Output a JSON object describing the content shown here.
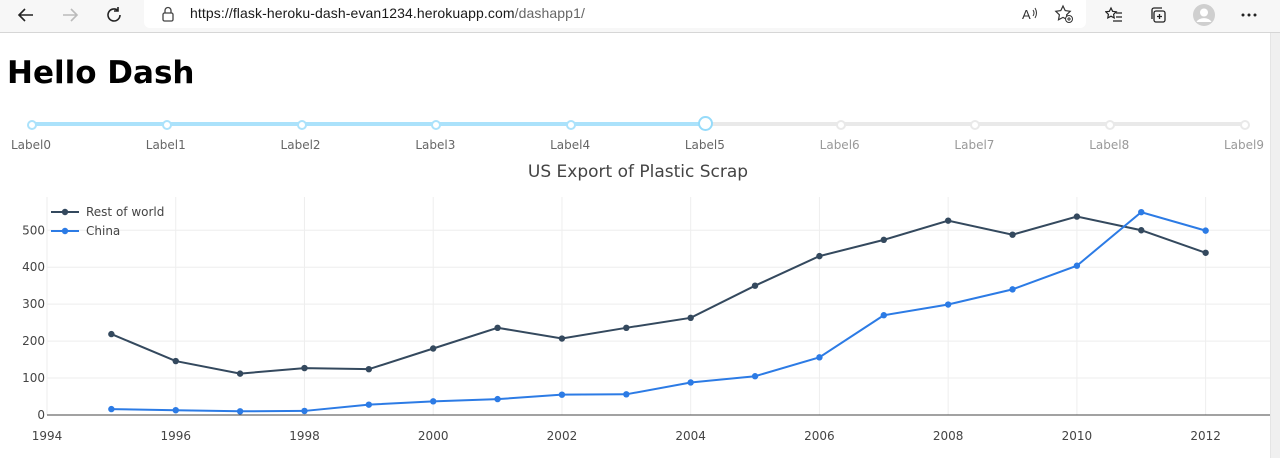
{
  "browser": {
    "url_host": "https://flask-heroku-dash-evan1234.herokuapp.com",
    "url_path": "/dashapp1/",
    "icons": [
      "back-icon",
      "forward-icon",
      "refresh-icon",
      "lock-icon",
      "read-aloud-icon",
      "favorite-add-icon",
      "favorites-icon",
      "collections-icon",
      "profile-icon",
      "more-icon"
    ]
  },
  "page": {
    "title": "Hello Dash"
  },
  "slider": {
    "marks": [
      "Label0",
      "Label1",
      "Label2",
      "Label3",
      "Label4",
      "Label5",
      "Label6",
      "Label7",
      "Label8",
      "Label9"
    ],
    "value_index": 5,
    "colors": {
      "active": "#abe2fb",
      "handle": "#96dbfa",
      "rail": "#e9e9e9"
    }
  },
  "chart_data": {
    "type": "line",
    "title": "US Export of Plastic Scrap",
    "xlim": [
      1994,
      2013
    ],
    "ylim": [
      0,
      590
    ],
    "x_ticks": [
      1994,
      1996,
      1998,
      2000,
      2002,
      2004,
      2006,
      2008,
      2010,
      2012
    ],
    "y_ticks": [
      0,
      100,
      200,
      300,
      400,
      500
    ],
    "grid": true,
    "legend": "top-left",
    "x": [
      1995,
      1996,
      1997,
      1998,
      1999,
      2000,
      2001,
      2002,
      2003,
      2004,
      2005,
      2006,
      2007,
      2008,
      2009,
      2010,
      2011,
      2012
    ],
    "series": [
      {
        "name": "Rest of world",
        "color": "#34495e",
        "values": [
          219,
          146,
          112,
          127,
          124,
          180,
          236,
          207,
          236,
          263,
          350,
          430,
          474,
          526,
          488,
          537,
          500,
          439
        ]
      },
      {
        "name": "China",
        "color": "#2c7be5",
        "values": [
          16,
          13,
          10,
          11,
          28,
          37,
          43,
          55,
          56,
          88,
          105,
          156,
          270,
          299,
          340,
          404,
          549,
          499
        ]
      }
    ]
  }
}
